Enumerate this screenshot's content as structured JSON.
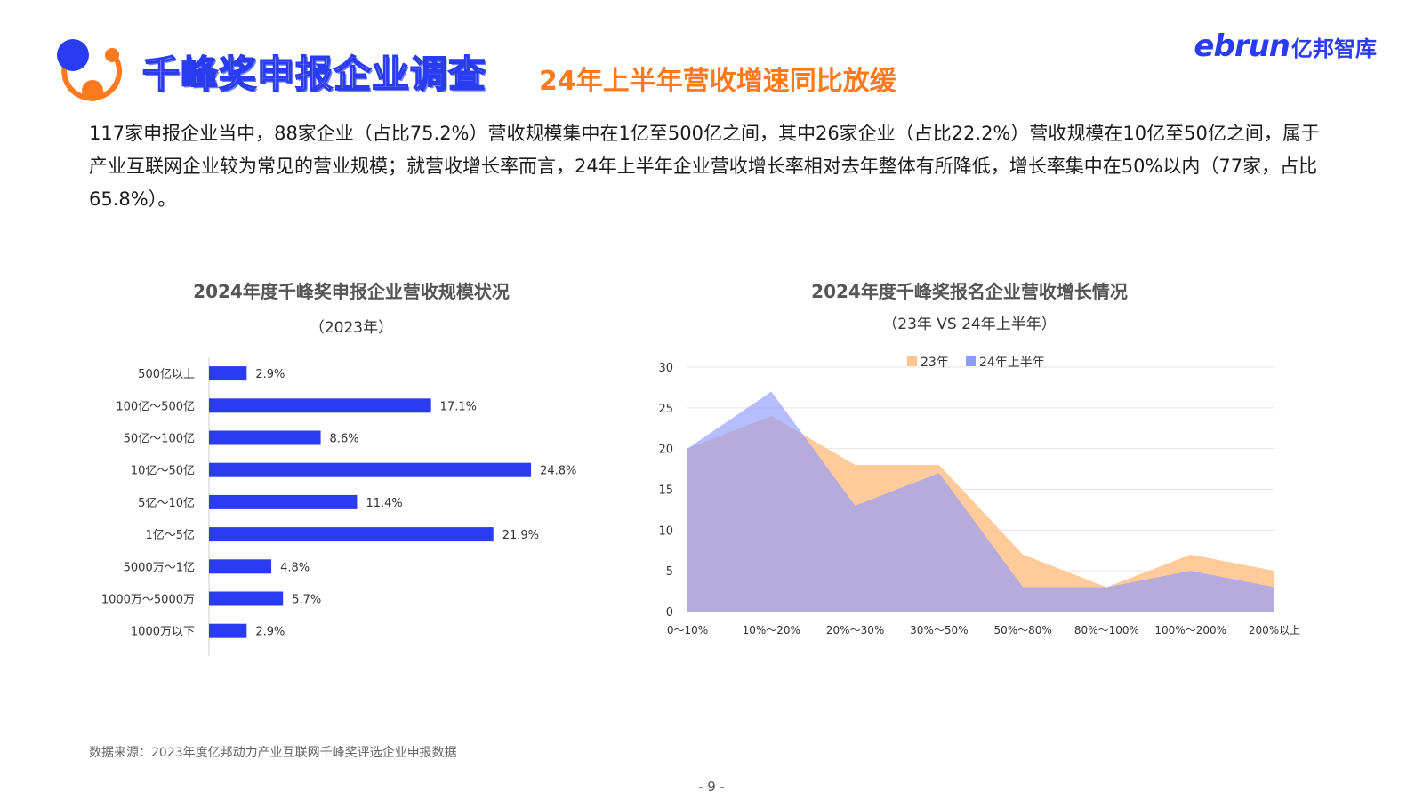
{
  "header": {
    "title": "千峰奖申报企业调查",
    "subtitle": "24年上半年营收增速同比放缓",
    "brand_latin": "ebrun",
    "brand_cn": "亿邦智库"
  },
  "summary": "117家申报企业当中，88家企业（占比75.2%）营收规模集中在1亿至500亿之间，其中26家企业（占比22.2%）营收规模在10亿至50亿之间，属于产业互联网企业较为常见的营业规模；就营收增长率而言，24年上半年企业营收增长率相对去年整体有所降低，增长率集中在50%以内（77家，占比65.8%）。",
  "chart_data": [
    {
      "type": "bar",
      "orientation": "horizontal",
      "title": "2024年度千峰奖申报企业营收规模状况",
      "subtitle": "（2023年）",
      "categories": [
        "500亿以上",
        "100亿～500亿",
        "50亿～100亿",
        "10亿～50亿",
        "5亿～10亿",
        "1亿～5亿",
        "5000万～1亿",
        "1000万～5000万",
        "1000万以下"
      ],
      "values": [
        2.9,
        17.1,
        8.6,
        24.8,
        11.4,
        21.9,
        4.8,
        5.7,
        2.9
      ],
      "value_labels": [
        "2.9%",
        "17.1%",
        "8.6%",
        "24.8%",
        "11.4%",
        "21.9%",
        "4.8%",
        "5.7%",
        "2.9%"
      ],
      "color": "#2a3cf2",
      "xlim": [
        0,
        30
      ]
    },
    {
      "type": "area",
      "title": "2024年度千峰奖报名企业营收增长情况",
      "subtitle": "（23年 VS 24年上半年）",
      "categories": [
        "0～10%",
        "10%～20%",
        "20%～30%",
        "30%～50%",
        "50%～80%",
        "80%～100%",
        "100%～200%",
        "200%以上"
      ],
      "series": [
        {
          "name": "23年",
          "values": [
            20,
            24,
            18,
            18,
            7,
            3,
            7,
            5
          ],
          "color": "#ffc58f"
        },
        {
          "name": "24年上半年",
          "values": [
            20,
            27,
            13,
            17,
            3,
            3,
            5,
            3
          ],
          "color": "#8f9bff"
        }
      ],
      "ylim": [
        0,
        30
      ],
      "yticks": [
        0,
        5,
        10,
        15,
        20,
        25,
        30
      ],
      "grid": true,
      "legend": "top-center"
    }
  ],
  "footer": {
    "source": "数据来源：2023年度亿邦动力产业互联网千峰奖评选企业申报数据",
    "page": "- 9 -"
  }
}
